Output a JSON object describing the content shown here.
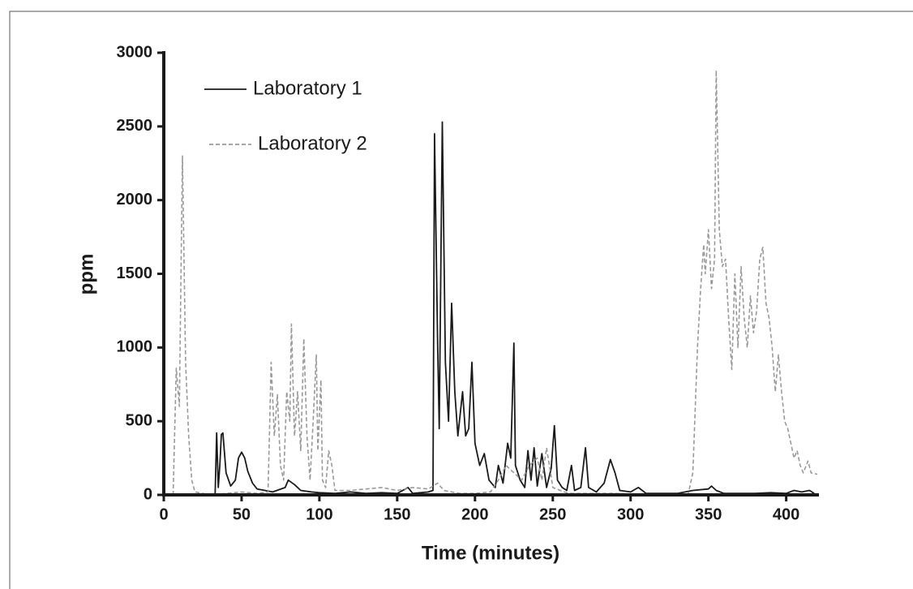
{
  "chart_data": {
    "type": "line",
    "xlabel": "Time (minutes)",
    "ylabel": "ppm",
    "xlim": [
      0,
      420
    ],
    "ylim": [
      0,
      3000
    ],
    "xticks": [
      0,
      50,
      100,
      150,
      200,
      250,
      300,
      350,
      400
    ],
    "yticks": [
      0,
      500,
      1000,
      1500,
      2000,
      2500,
      3000
    ],
    "legend": "upper left",
    "series": [
      {
        "name": "Laboratory 1",
        "color": "#1a1a1a",
        "linestyle": "solid",
        "x": [
          33,
          34,
          35,
          36,
          37,
          38,
          40,
          43,
          46,
          48,
          50,
          52,
          54,
          57,
          60,
          65,
          70,
          78,
          80,
          84,
          88,
          95,
          100,
          110,
          120,
          130,
          140,
          150,
          157,
          160,
          170,
          173,
          174,
          176,
          177,
          178,
          179,
          181,
          183,
          185,
          187,
          189,
          192,
          194,
          196,
          198,
          200,
          203,
          206,
          209,
          213,
          215,
          218,
          221,
          223,
          225,
          226,
          229,
          232,
          234,
          236,
          238,
          240,
          243,
          246,
          249,
          251,
          253,
          256,
          259,
          262,
          264,
          268,
          271,
          273,
          278,
          283,
          287,
          290,
          293,
          300,
          305,
          310,
          320,
          330,
          340,
          350,
          352,
          355,
          360,
          370,
          380,
          390,
          400,
          405,
          410,
          415,
          418
        ],
        "values": [
          0,
          420,
          50,
          200,
          410,
          420,
          150,
          60,
          100,
          250,
          290,
          250,
          160,
          80,
          40,
          30,
          20,
          50,
          100,
          70,
          30,
          20,
          15,
          10,
          20,
          10,
          15,
          10,
          50,
          10,
          20,
          30,
          2450,
          1000,
          450,
          1500,
          2530,
          900,
          500,
          1300,
          700,
          400,
          700,
          400,
          450,
          900,
          350,
          200,
          280,
          100,
          50,
          200,
          80,
          350,
          250,
          1030,
          200,
          100,
          50,
          300,
          100,
          320,
          60,
          280,
          50,
          180,
          470,
          100,
          50,
          30,
          200,
          30,
          50,
          320,
          50,
          20,
          80,
          240,
          150,
          30,
          20,
          50,
          10,
          10,
          10,
          30,
          40,
          60,
          30,
          10,
          10,
          10,
          15,
          10,
          30,
          20,
          30,
          10
        ]
      },
      {
        "name": "Laboratory 2",
        "color": "#999999",
        "linestyle": "dashed",
        "x": [
          6,
          8,
          10,
          12,
          14,
          16,
          18,
          20,
          25,
          30,
          40,
          50,
          60,
          67,
          69,
          71,
          73,
          75,
          77,
          79,
          81,
          82,
          84,
          86,
          88,
          90,
          92,
          94,
          96,
          98,
          99,
          101,
          102,
          104,
          106,
          108,
          110,
          120,
          130,
          140,
          150,
          160,
          170,
          176,
          180,
          190,
          200,
          210,
          215,
          220,
          225,
          230,
          235,
          240,
          243,
          246,
          250,
          260,
          270,
          290,
          300,
          320,
          337,
          340,
          343,
          345,
          347,
          348,
          350,
          352,
          354,
          355,
          357,
          359,
          361,
          363,
          365,
          367,
          369,
          371,
          373,
          375,
          377,
          379,
          381,
          383,
          385,
          387,
          389,
          391,
          393,
          395,
          397,
          399,
          401,
          403,
          405,
          407,
          409,
          411,
          414,
          416,
          420
        ],
        "values": [
          0,
          860,
          600,
          2300,
          900,
          400,
          100,
          20,
          10,
          0,
          10,
          20,
          10,
          20,
          900,
          400,
          680,
          200,
          100,
          700,
          500,
          1160,
          400,
          700,
          300,
          1060,
          400,
          100,
          500,
          950,
          300,
          780,
          100,
          50,
          300,
          200,
          30,
          30,
          40,
          50,
          30,
          50,
          40,
          80,
          30,
          10,
          10,
          20,
          100,
          200,
          150,
          100,
          200,
          250,
          100,
          320,
          50,
          10,
          10,
          10,
          5,
          5,
          5,
          150,
          1000,
          1400,
          1700,
          1500,
          1800,
          1400,
          1600,
          2880,
          1800,
          1550,
          1600,
          1200,
          850,
          1500,
          1000,
          1550,
          1200,
          1000,
          1350,
          1100,
          1250,
          1600,
          1680,
          1300,
          1200,
          1000,
          700,
          950,
          700,
          500,
          450,
          350,
          250,
          300,
          200,
          150,
          230,
          150,
          140
        ]
      }
    ]
  }
}
